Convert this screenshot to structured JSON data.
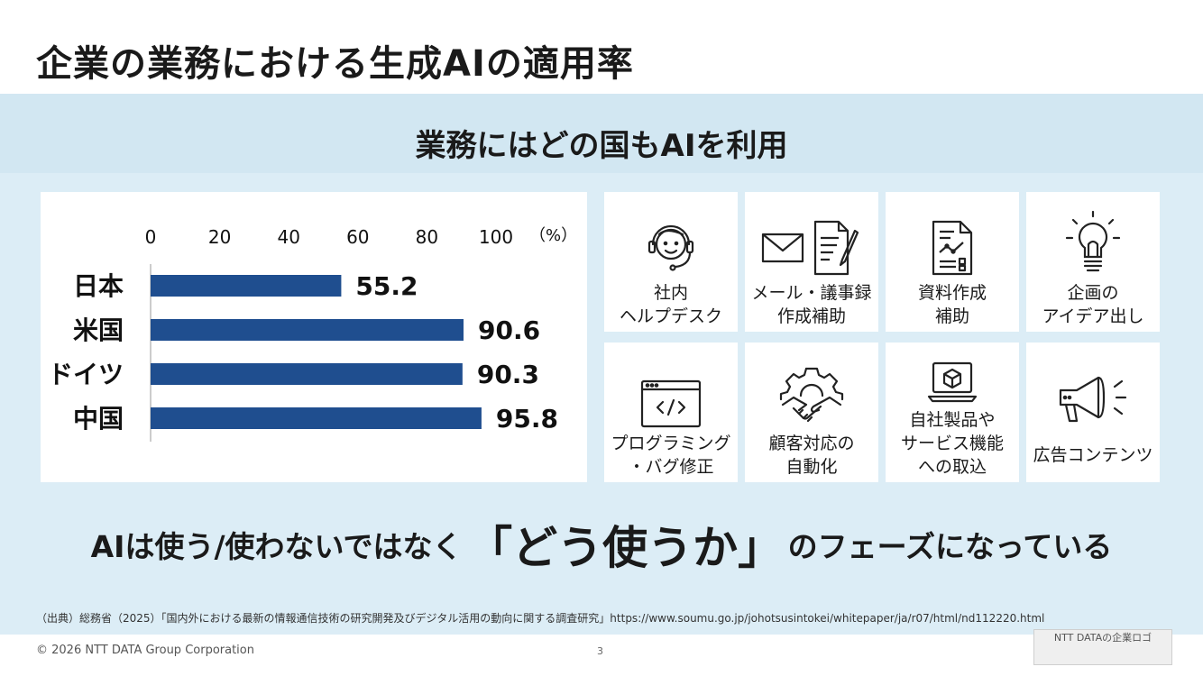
{
  "header": {
    "title": "企業の業務における生成AIの適用率"
  },
  "subtitle": "業務にはどの国もAIを利用",
  "chart_data": {
    "type": "bar",
    "orientation": "horizontal",
    "categories": [
      "日本",
      "米国",
      "ドイツ",
      "中国"
    ],
    "values": [
      55.2,
      90.6,
      90.3,
      95.8
    ],
    "xticks": [
      "0",
      "20",
      "40",
      "60",
      "80",
      "100"
    ],
    "xlim": [
      0,
      100
    ],
    "unit_label": "（%）",
    "axis_position": "top",
    "bar_color": "#1f4e8f",
    "grid": false,
    "title": ""
  },
  "tiles": [
    {
      "icon": "headset-support-icon",
      "label": "社内\nヘルプデスク"
    },
    {
      "icon": "mail-document-icon",
      "label": "メール・議事録\n作成補助"
    },
    {
      "icon": "report-chart-document-icon",
      "label": "資料作成\n補助"
    },
    {
      "icon": "lightbulb-icon",
      "label": "企画の\nアイデア出し"
    },
    {
      "icon": "code-window-icon",
      "label": "プログラミング\n・バグ修正"
    },
    {
      "icon": "gear-handshake-icon",
      "label": "顧客対応の\n自動化"
    },
    {
      "icon": "laptop-cube-icon",
      "label": "自社製品や\nサービス機能\nへの取込"
    },
    {
      "icon": "megaphone-icon",
      "label": "広告コンテンツ"
    }
  ],
  "tagline": {
    "pre": "AIは使う/使わないではなく",
    "emphasis": "「どう使うか」",
    "post": "のフェーズになっている"
  },
  "source": "（出典）総務省（2025）「国内外における最新の情報通信技術の研究開発及びデジタル活用の動向に関する調査研究」https://www.soumu.go.jp/johotsusintokei/whitepaper/ja/r07/html/nd112220.html",
  "footer": {
    "copyright": "© 2026 NTT DATA Group Corporation",
    "page": "3",
    "logo_placeholder": "NTT DATAの企業ロゴ"
  }
}
